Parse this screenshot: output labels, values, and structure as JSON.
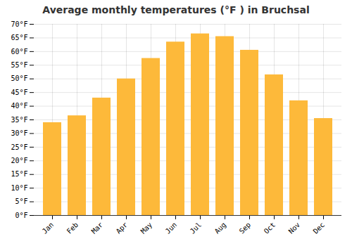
{
  "chart_data": {
    "type": "bar",
    "title": "Average monthly temperatures (°F ) in Bruchsal",
    "categories": [
      "Jan",
      "Feb",
      "Mar",
      "Apr",
      "May",
      "Jun",
      "Jul",
      "Aug",
      "Sep",
      "Oct",
      "Nov",
      "Dec"
    ],
    "values": [
      34,
      36.5,
      43,
      50,
      57.5,
      63.5,
      66.5,
      65.5,
      60.5,
      51.5,
      42,
      35.5
    ],
    "color": "#FDB93A",
    "ylim": [
      0,
      70
    ],
    "yticks": [
      {
        "value": 0,
        "label": "0°F"
      },
      {
        "value": 5,
        "label": "5°F"
      },
      {
        "value": 10,
        "label": "10°F"
      },
      {
        "value": 15,
        "label": "15°F"
      },
      {
        "value": 20,
        "label": "20°F"
      },
      {
        "value": 25,
        "label": "25°F"
      },
      {
        "value": 30,
        "label": "30°F"
      },
      {
        "value": 35,
        "label": "35°F"
      },
      {
        "value": 40,
        "label": "40°F"
      },
      {
        "value": 45,
        "label": "45°F"
      },
      {
        "value": 50,
        "label": "50°F"
      },
      {
        "value": 55,
        "label": "55°F"
      },
      {
        "value": 60,
        "label": "60°F"
      },
      {
        "value": 65,
        "label": "65°F"
      },
      {
        "value": 70,
        "label": "70°F"
      }
    ],
    "grid": true
  }
}
